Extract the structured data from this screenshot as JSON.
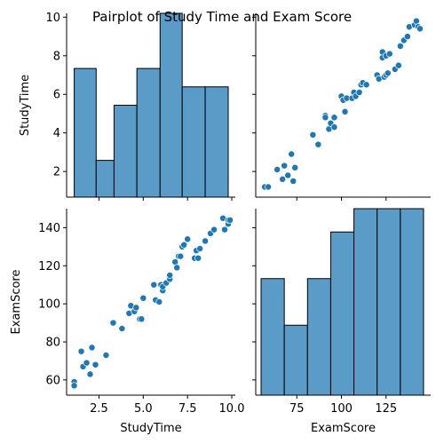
{
  "title": "Pairplot of Study Time and Exam Score",
  "variables": [
    "StudyTime",
    "ExamScore"
  ],
  "colors": {
    "marker": "#1f77b4",
    "hist_fill": "#5a9bc8",
    "edge": "#000000"
  },
  "chart_data": [
    {
      "type": "histogram",
      "variable": "StudyTime",
      "panel": "row-1-col-1",
      "bins": [
        {
          "x0": 1.1,
          "x1": 2.34,
          "count": 7
        },
        {
          "x0": 2.34,
          "x1": 3.35,
          "count": 2
        },
        {
          "x0": 3.35,
          "x1": 4.64,
          "count": 5
        },
        {
          "x0": 4.64,
          "x1": 5.95,
          "count": 7
        },
        {
          "x0": 5.95,
          "x1": 7.2,
          "count": 10
        },
        {
          "x0": 7.2,
          "x1": 8.5,
          "count": 6
        },
        {
          "x0": 8.5,
          "x1": 9.8,
          "count": 6
        }
      ]
    },
    {
      "type": "scatter",
      "panel": "row-1-col-2",
      "xlabel": "ExamScore",
      "ylabel": "StudyTime",
      "points": [
        [
          57,
          1.2
        ],
        [
          59,
          1.2
        ],
        [
          64,
          2.1
        ],
        [
          67,
          1.6
        ],
        [
          68,
          2.3
        ],
        [
          70,
          1.8
        ],
        [
          72,
          2.9
        ],
        [
          73,
          1.5
        ],
        [
          74,
          2.2
        ],
        [
          84,
          3.9
        ],
        [
          87,
          3.4
        ],
        [
          91,
          4.9
        ],
        [
          91,
          4.8
        ],
        [
          93,
          4.2
        ],
        [
          94,
          4.5
        ],
        [
          96,
          4.3
        ],
        [
          96,
          4.8
        ],
        [
          100,
          5.9
        ],
        [
          101,
          5.7
        ],
        [
          102,
          5.1
        ],
        [
          103,
          5.8
        ],
        [
          106,
          5.8
        ],
        [
          107,
          6.1
        ],
        [
          108,
          5.9
        ],
        [
          110,
          6.1
        ],
        [
          111,
          6.5
        ],
        [
          112,
          6.6
        ],
        [
          114,
          6.5
        ],
        [
          120,
          7.0
        ],
        [
          121,
          6.8
        ],
        [
          123,
          7.9
        ],
        [
          123,
          8.2
        ],
        [
          124,
          6.9
        ],
        [
          125,
          7.0
        ],
        [
          125,
          8.0
        ],
        [
          126,
          7.1
        ],
        [
          127,
          8.1
        ],
        [
          130,
          7.3
        ],
        [
          132,
          7.5
        ],
        [
          133,
          8.5
        ],
        [
          135,
          8.8
        ],
        [
          137,
          9.0
        ],
        [
          138,
          9.5
        ],
        [
          141,
          9.6
        ],
        [
          142,
          9.8
        ],
        [
          143,
          9.5
        ],
        [
          144,
          9.4
        ]
      ]
    },
    {
      "type": "scatter",
      "panel": "row-2-col-1",
      "xlabel": "StudyTime",
      "ylabel": "ExamScore",
      "points": [
        [
          1.1,
          59
        ],
        [
          1.1,
          57
        ],
        [
          1.5,
          75
        ],
        [
          1.6,
          67
        ],
        [
          1.8,
          69
        ],
        [
          2.0,
          63
        ],
        [
          2.1,
          77
        ],
        [
          2.3,
          68
        ],
        [
          2.9,
          73
        ],
        [
          3.3,
          90
        ],
        [
          3.8,
          87
        ],
        [
          4.2,
          95
        ],
        [
          4.3,
          99
        ],
        [
          4.5,
          96
        ],
        [
          4.6,
          98
        ],
        [
          4.8,
          92
        ],
        [
          4.9,
          92
        ],
        [
          5.0,
          103
        ],
        [
          5.6,
          110
        ],
        [
          5.7,
          102
        ],
        [
          5.9,
          101
        ],
        [
          6.0,
          110
        ],
        [
          6.1,
          107
        ],
        [
          6.1,
          109
        ],
        [
          6.3,
          111
        ],
        [
          6.5,
          113
        ],
        [
          6.5,
          115
        ],
        [
          6.8,
          122
        ],
        [
          6.9,
          119
        ],
        [
          7.0,
          125
        ],
        [
          7.1,
          125
        ],
        [
          7.2,
          130
        ],
        [
          7.3,
          131
        ],
        [
          7.5,
          134
        ],
        [
          7.9,
          124
        ],
        [
          8.0,
          128
        ],
        [
          8.1,
          124
        ],
        [
          8.2,
          129
        ],
        [
          8.5,
          133
        ],
        [
          8.8,
          137
        ],
        [
          9.0,
          139
        ],
        [
          9.5,
          145
        ],
        [
          9.6,
          139
        ],
        [
          9.8,
          142
        ],
        [
          9.8,
          144
        ],
        [
          9.9,
          144
        ]
      ]
    },
    {
      "type": "histogram",
      "variable": "ExamScore",
      "panel": "row-2-col-2",
      "bins": [
        {
          "x0": 55,
          "x1": 68,
          "count": 5
        },
        {
          "x0": 68,
          "x1": 81,
          "count": 3
        },
        {
          "x0": 81,
          "x1": 94,
          "count": 5
        },
        {
          "x0": 94,
          "x1": 107,
          "count": 7
        },
        {
          "x0": 107,
          "x1": 120,
          "count": 8
        },
        {
          "x0": 120,
          "x1": 133,
          "count": 8
        },
        {
          "x0": 133,
          "x1": 146,
          "count": 8
        }
      ]
    }
  ],
  "axes": {
    "studytime_ticks": [
      "2.5",
      "5.0",
      "7.5",
      "10.0"
    ],
    "studytime_tick_values": [
      2.5,
      5.0,
      7.5,
      10.0
    ],
    "studytime_y_ticks": [
      "2",
      "4",
      "6",
      "8",
      "10"
    ],
    "studytime_y_tick_values": [
      2,
      4,
      6,
      8,
      10
    ],
    "examscore_ticks": [
      "75",
      "100",
      "125"
    ],
    "examscore_tick_values": [
      75,
      100,
      125
    ],
    "examscore_y_ticks": [
      "60",
      "80",
      "100",
      "120",
      "140"
    ],
    "examscore_y_tick_values": [
      60,
      80,
      100,
      120,
      140
    ],
    "studytime_range": [
      0.67,
      10.2
    ],
    "examscore_range": [
      52,
      150
    ]
  }
}
